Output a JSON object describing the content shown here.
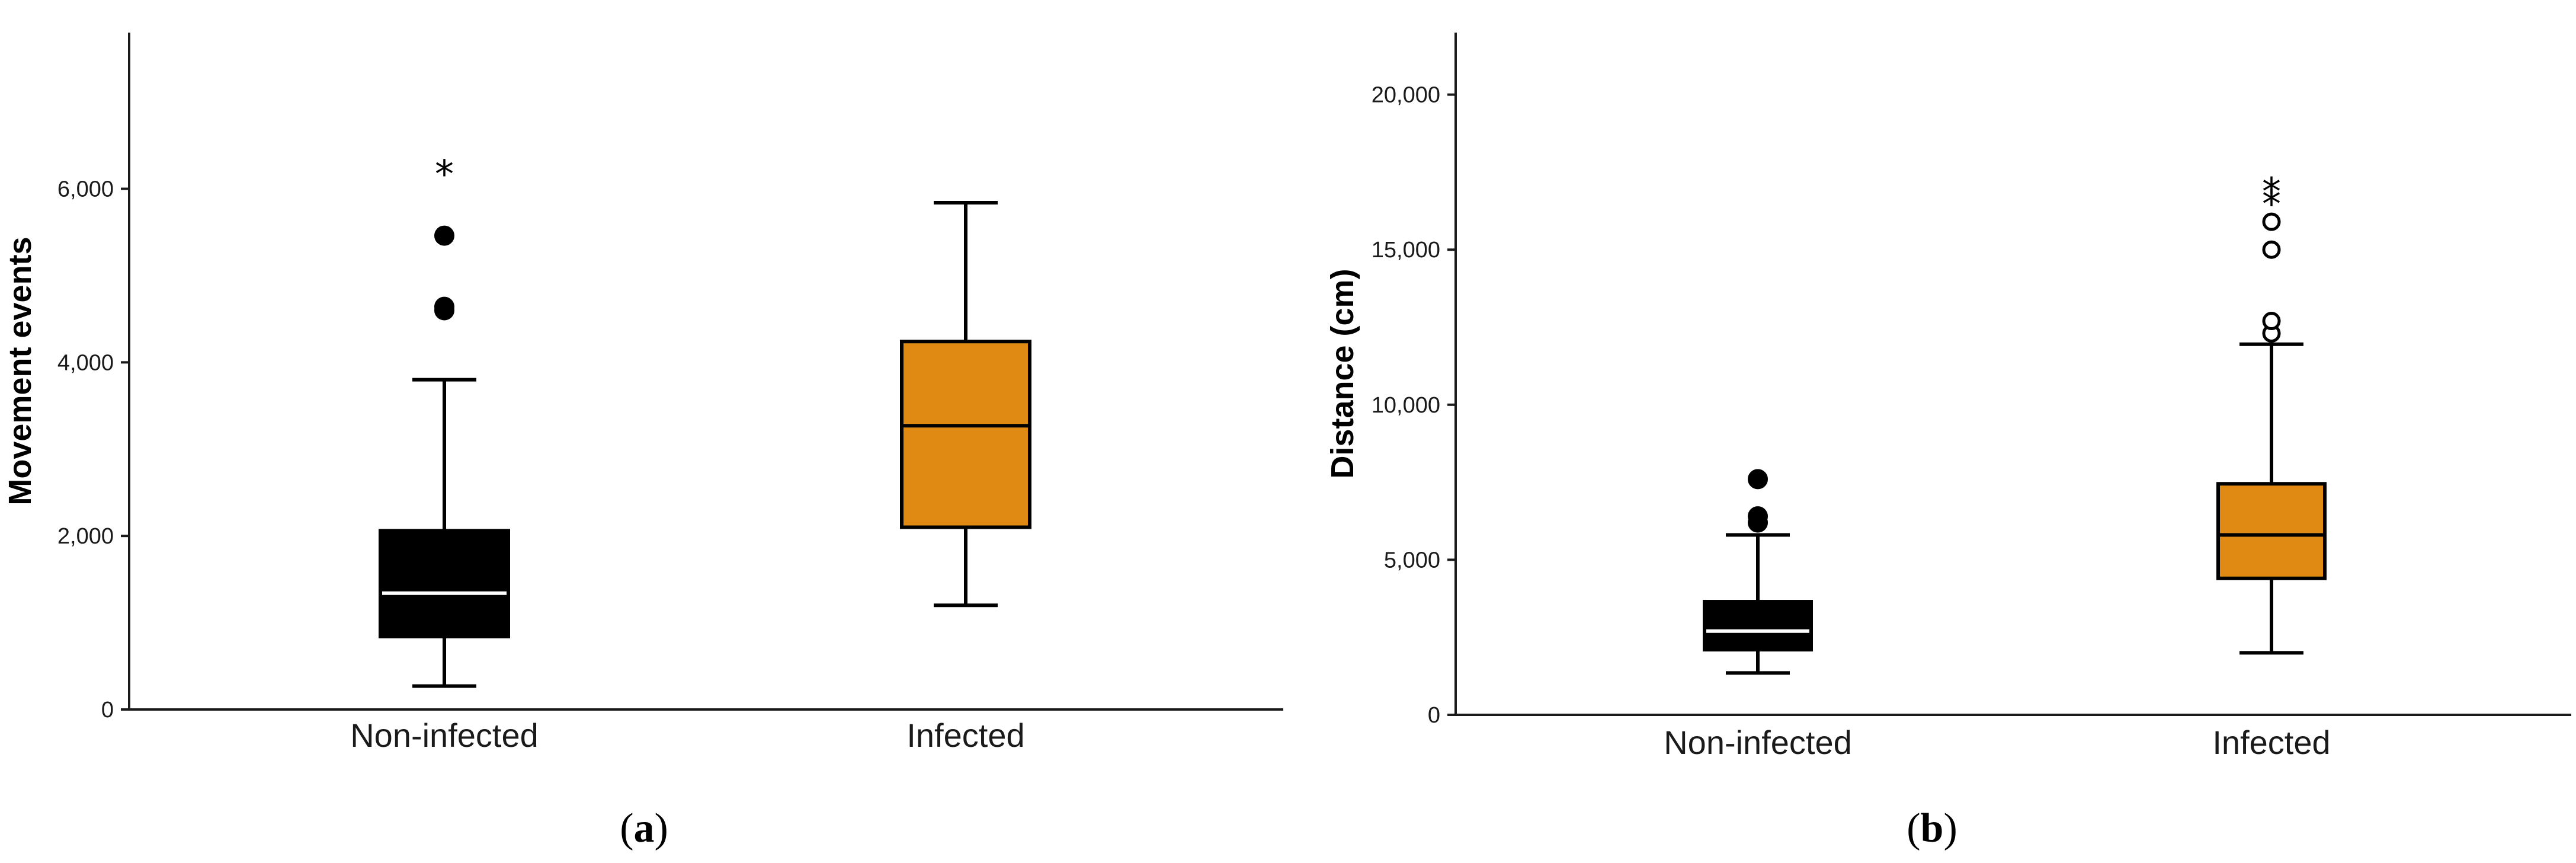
{
  "chart_data": [
    {
      "type": "boxplot",
      "panel": "a",
      "caption_letter": "a",
      "caption_open": "(",
      "caption_close": ")",
      "ylabel": "Movement events",
      "xlabel": "",
      "ylim": [
        0,
        7800
      ],
      "yticks": [
        0,
        2000,
        4000,
        6000
      ],
      "ytick_labels": [
        "0",
        "2,000",
        "4,000",
        "6,000"
      ],
      "categories": [
        "Non-infected",
        "Infected"
      ],
      "boxes": [
        {
          "category": "Non-infected",
          "color": "#000000",
          "median_color": "#ffffff",
          "whisker_low": 270,
          "q1": 840,
          "median": 1340,
          "q3": 2060,
          "whisker_high": 3800,
          "outliers": [
            4600,
            4640,
            5460
          ],
          "extremes": [
            6250
          ]
        },
        {
          "category": "Infected",
          "color": "#e08a14",
          "median_color": "#000000",
          "whisker_low": 1200,
          "q1": 2100,
          "median": 3270,
          "q3": 4240,
          "whisker_high": 5840,
          "outliers": [],
          "extremes": []
        }
      ]
    },
    {
      "type": "boxplot",
      "panel": "b",
      "caption_letter": "b",
      "caption_open": "(",
      "caption_close": ")",
      "ylabel": "Distance (cm)",
      "xlabel": "",
      "ylim": [
        0,
        22000
      ],
      "yticks": [
        0,
        5000,
        10000,
        15000,
        20000
      ],
      "ytick_labels": [
        "0",
        "5,000",
        "10,000",
        "15,000",
        "20,000"
      ],
      "categories": [
        "Non-infected",
        "Infected"
      ],
      "boxes": [
        {
          "category": "Non-infected",
          "color": "#000000",
          "median_color": "#ffffff",
          "whisker_low": 1350,
          "q1": 2100,
          "median": 2700,
          "q3": 3650,
          "whisker_high": 5800,
          "outliers": [
            6200,
            6400,
            7600
          ],
          "outlier_style": "filled",
          "extremes": []
        },
        {
          "category": "Infected",
          "color": "#e08a14",
          "median_color": "#000000",
          "whisker_low": 2000,
          "q1": 4400,
          "median": 5800,
          "q3": 7450,
          "whisker_high": 11950,
          "outliers": [
            12300,
            12700,
            15000,
            15900
          ],
          "outlier_style": "open",
          "extremes": [
            16700,
            17100
          ]
        }
      ]
    }
  ]
}
